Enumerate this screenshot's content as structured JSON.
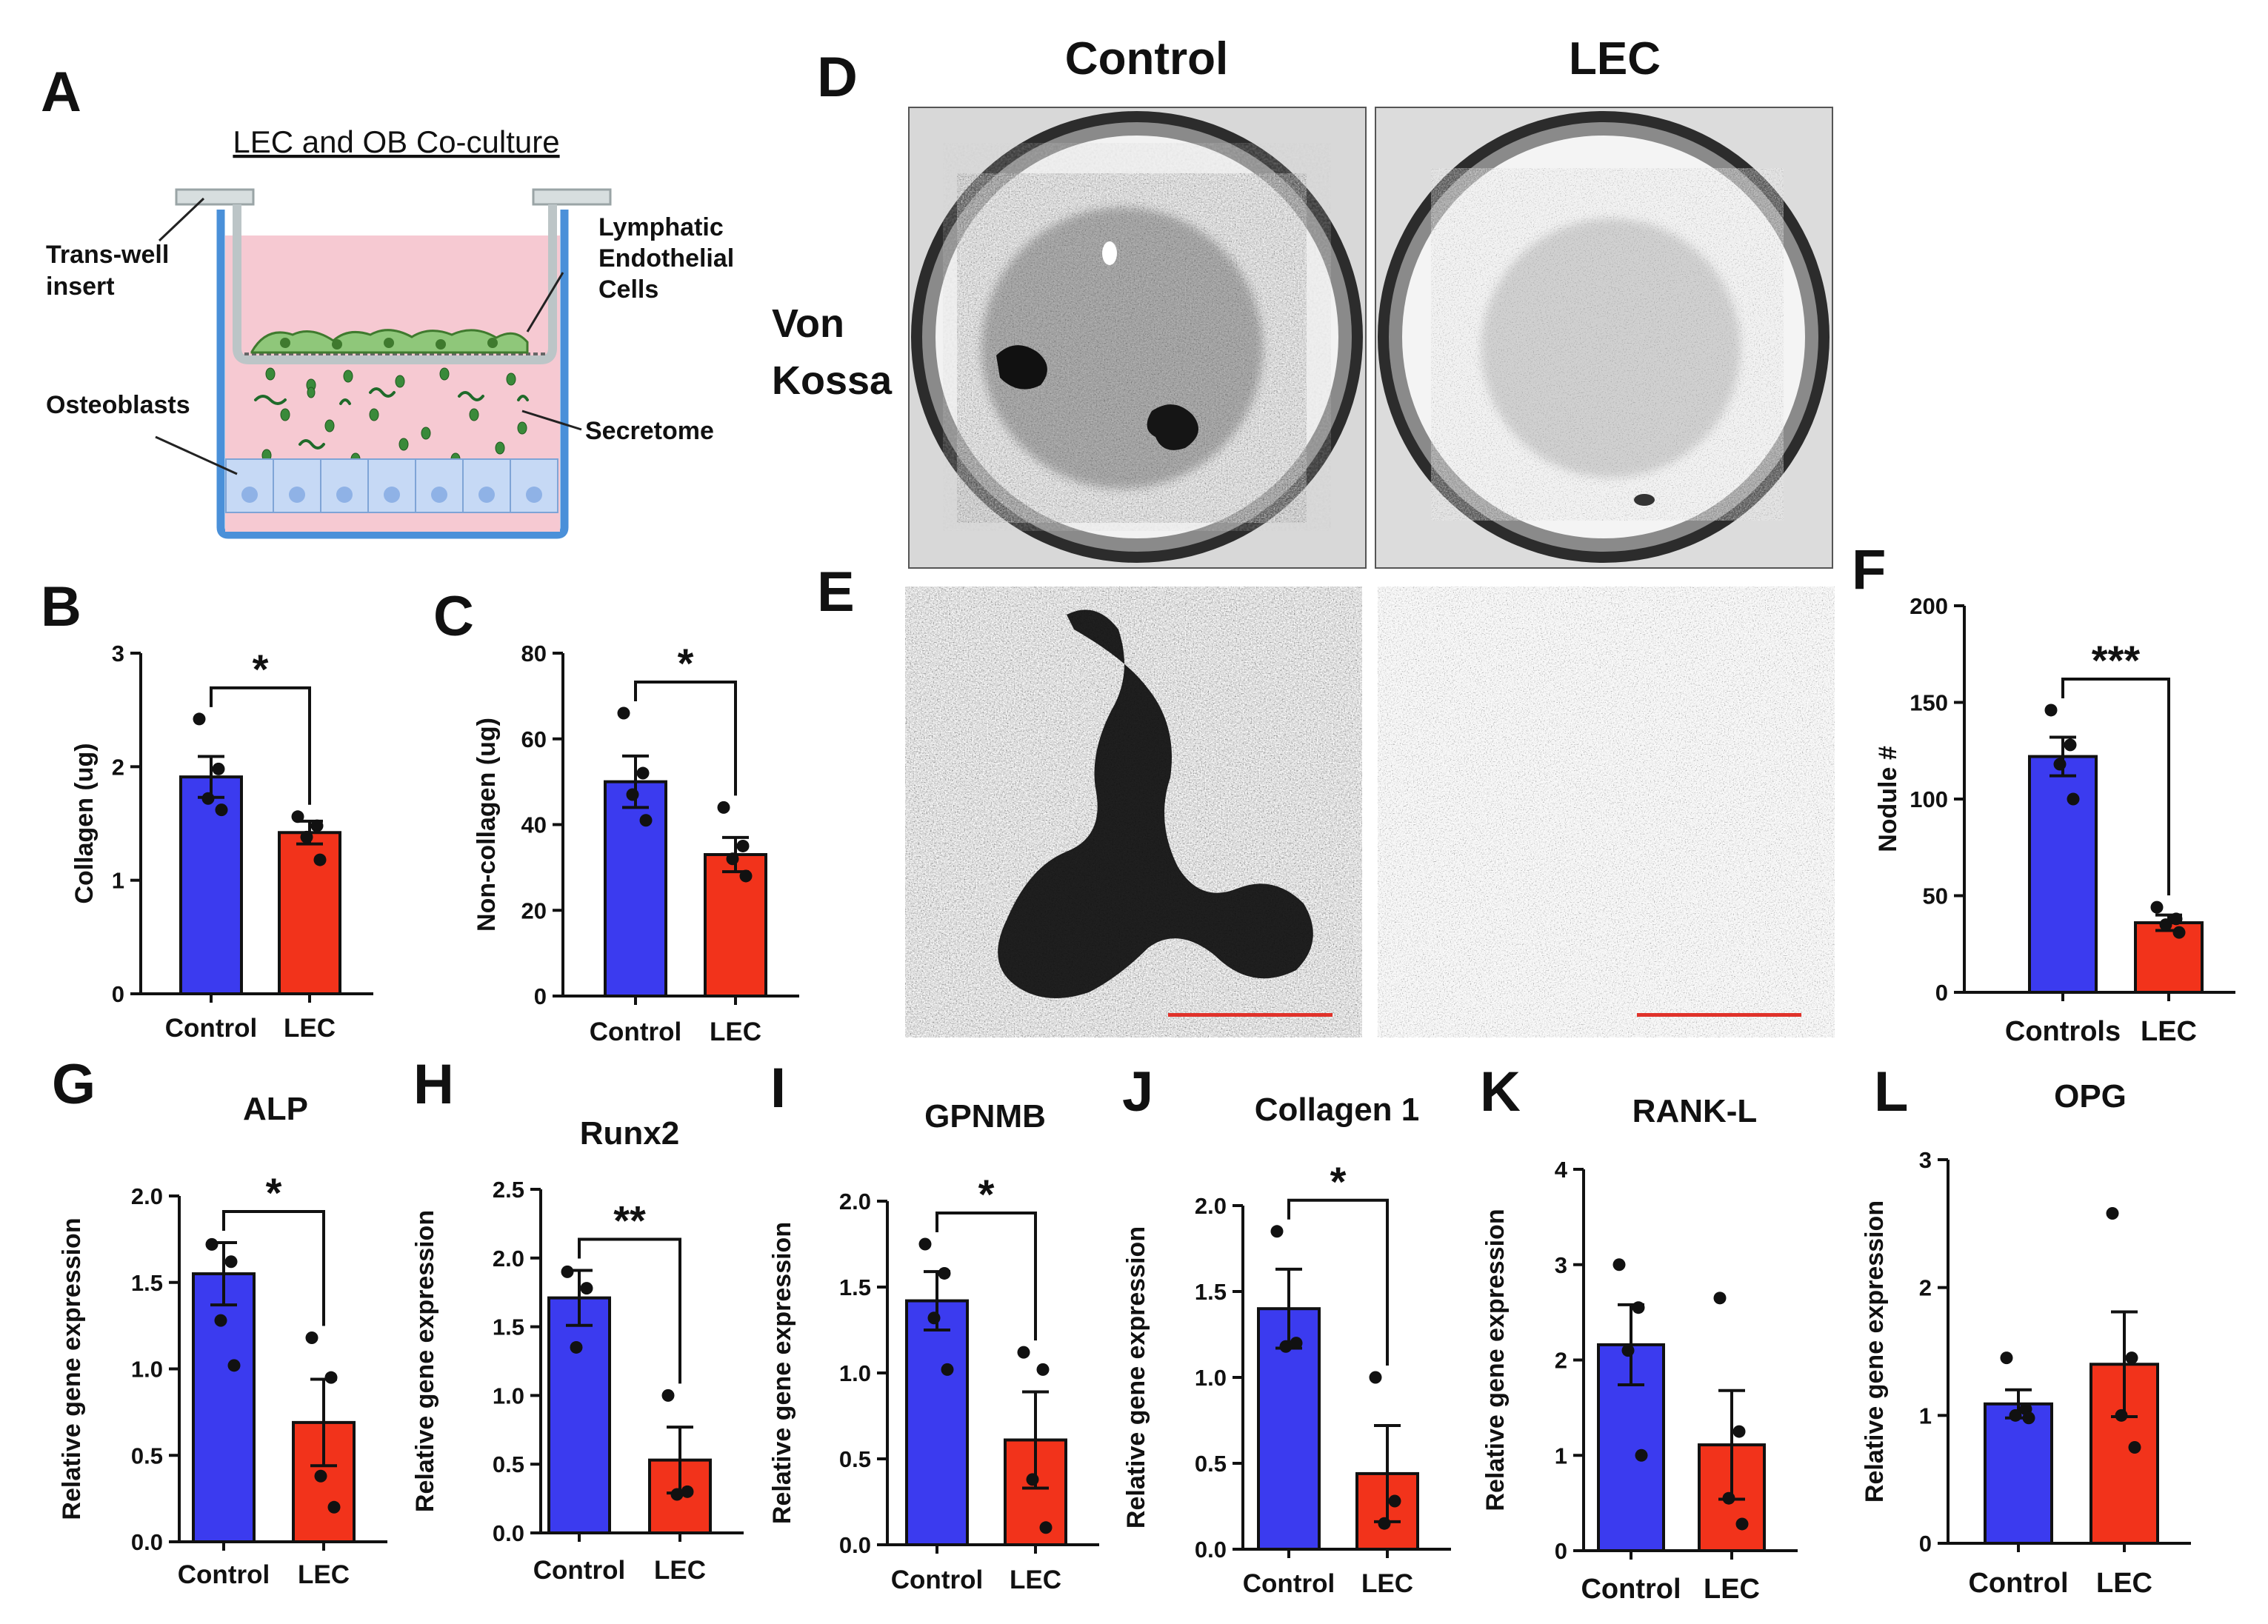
{
  "colors": {
    "control": "#3B3BEF",
    "lec": "#F2331B",
    "scale_bar": "#E0322A"
  },
  "panel_A": {
    "label": "A",
    "title": "LEC and OB Co-culture",
    "labels": {
      "transwell": [
        "Trans-well",
        "insert"
      ],
      "lec": [
        "Lymphatic",
        "Endothelial",
        "Cells"
      ],
      "osteoblasts": "Osteoblasts",
      "secretome": "Secretome"
    }
  },
  "panel_D": {
    "label": "D",
    "row_title": [
      "Von",
      "Kossa"
    ]
  },
  "panel_E": {
    "label": "E"
  },
  "image_columns": [
    "Control",
    "LEC"
  ],
  "chart_data": [
    {
      "panel": "B",
      "type": "bar",
      "title": "",
      "ylabel": "Collagen (ug)",
      "ylim": [
        0,
        3
      ],
      "ticks": [
        "0",
        "1",
        "2",
        "3"
      ],
      "tick_values": [
        0,
        1,
        2,
        3
      ],
      "categories": [
        "Control",
        "LEC"
      ],
      "values": [
        1.91,
        1.42
      ],
      "sem": [
        0.18,
        0.1
      ],
      "points": [
        [
          2.42,
          1.98,
          1.72,
          1.62
        ],
        [
          1.56,
          1.48,
          1.38,
          1.18
        ]
      ],
      "significance": "*"
    },
    {
      "panel": "C",
      "type": "bar",
      "title": "",
      "ylabel": "Non-collagen (ug)",
      "ylim": [
        0,
        80
      ],
      "ticks": [
        "0",
        "20",
        "40",
        "60",
        "80"
      ],
      "tick_values": [
        0,
        20,
        40,
        60,
        80
      ],
      "categories": [
        "Control",
        "LEC"
      ],
      "values": [
        50,
        33
      ],
      "sem": [
        6,
        4
      ],
      "points": [
        [
          66,
          52,
          47,
          41
        ],
        [
          44,
          35,
          32,
          28
        ]
      ],
      "significance": "*"
    },
    {
      "panel": "F",
      "type": "bar",
      "title": "",
      "ylabel": "Nodule #",
      "ylim": [
        0,
        200
      ],
      "ticks": [
        "0",
        "50",
        "100",
        "150",
        "200"
      ],
      "tick_values": [
        0,
        50,
        100,
        150,
        200
      ],
      "categories": [
        "Controls",
        "LEC"
      ],
      "values": [
        122,
        36
      ],
      "sem": [
        10,
        4
      ],
      "points": [
        [
          146,
          128,
          118,
          100
        ],
        [
          44,
          38,
          35,
          31
        ]
      ],
      "significance": "***"
    },
    {
      "panel": "G",
      "type": "bar",
      "title": "ALP",
      "ylabel": "Relative gene expression",
      "ylim": [
        0,
        2.0
      ],
      "ticks": [
        "0.0",
        "0.5",
        "1.0",
        "1.5",
        "2.0"
      ],
      "tick_values": [
        0,
        0.5,
        1,
        1.5,
        2
      ],
      "categories": [
        "Control",
        "LEC"
      ],
      "values": [
        1.55,
        0.69
      ],
      "sem": [
        0.18,
        0.25
      ],
      "points": [
        [
          1.72,
          1.62,
          1.28,
          1.02
        ],
        [
          1.18,
          0.95,
          0.38,
          0.2
        ]
      ],
      "significance": "*"
    },
    {
      "panel": "H",
      "type": "bar",
      "title": "Runx2",
      "ylabel": "Relative gene expression",
      "ylim": [
        0,
        2.5
      ],
      "ticks": [
        "0.0",
        "0.5",
        "1.0",
        "1.5",
        "2.0",
        "2.5"
      ],
      "tick_values": [
        0,
        0.5,
        1,
        1.5,
        2,
        2.5
      ],
      "categories": [
        "Control",
        "LEC"
      ],
      "values": [
        1.71,
        0.53
      ],
      "sem": [
        0.2,
        0.24
      ],
      "points": [
        [
          1.9,
          1.78,
          1.35
        ],
        [
          1.0,
          0.3,
          0.28
        ]
      ],
      "significance": "**"
    },
    {
      "panel": "I",
      "type": "bar",
      "title": "GPNMB",
      "ylabel": "Relative gene expression",
      "ylim": [
        0,
        2.0
      ],
      "ticks": [
        "0.0",
        "0.5",
        "1.0",
        "1.5",
        "2.0"
      ],
      "tick_values": [
        0,
        0.5,
        1,
        1.5,
        2
      ],
      "categories": [
        "Control",
        "LEC"
      ],
      "values": [
        1.42,
        0.61
      ],
      "sem": [
        0.17,
        0.28
      ],
      "points": [
        [
          1.75,
          1.58,
          1.32,
          1.02
        ],
        [
          1.12,
          1.02,
          0.38,
          0.1
        ]
      ],
      "significance": "*"
    },
    {
      "panel": "J",
      "type": "bar",
      "title": "Collagen 1",
      "ylabel": "Relative gene expression",
      "ylim": [
        0,
        2.0
      ],
      "ticks": [
        "0.0",
        "0.5",
        "1.0",
        "1.5",
        "2.0"
      ],
      "tick_values": [
        0,
        0.5,
        1,
        1.5,
        2
      ],
      "categories": [
        "Control",
        "LEC"
      ],
      "values": [
        1.4,
        0.44
      ],
      "sem": [
        0.23,
        0.28
      ],
      "points": [
        [
          1.85,
          1.2,
          1.18
        ],
        [
          1.0,
          0.28,
          0.15
        ]
      ],
      "significance": "*"
    },
    {
      "panel": "K",
      "type": "bar",
      "title": "RANK-L",
      "ylabel": "Relative gene expression",
      "ylim": [
        0,
        4
      ],
      "ticks": [
        "0",
        "1",
        "2",
        "3",
        "4"
      ],
      "tick_values": [
        0,
        1,
        2,
        3,
        4
      ],
      "categories": [
        "Control",
        "LEC"
      ],
      "values": [
        2.16,
        1.11
      ],
      "sem": [
        0.42,
        0.57
      ],
      "points": [
        [
          3.0,
          2.55,
          2.1,
          1.0
        ],
        [
          2.65,
          1.25,
          0.55,
          0.28
        ]
      ],
      "significance": ""
    },
    {
      "panel": "L",
      "type": "bar",
      "title": "OPG",
      "ylabel": "Relative gene expression",
      "ylim": [
        0,
        3
      ],
      "ticks": [
        "0",
        "1",
        "2",
        "3"
      ],
      "tick_values": [
        0,
        1,
        2,
        3
      ],
      "categories": [
        "Control",
        "LEC"
      ],
      "values": [
        1.09,
        1.4
      ],
      "sem": [
        0.11,
        0.41
      ],
      "points": [
        [
          1.45,
          1.05,
          1.0,
          0.98
        ],
        [
          2.58,
          1.45,
          1.0,
          0.75
        ]
      ],
      "significance": ""
    }
  ]
}
